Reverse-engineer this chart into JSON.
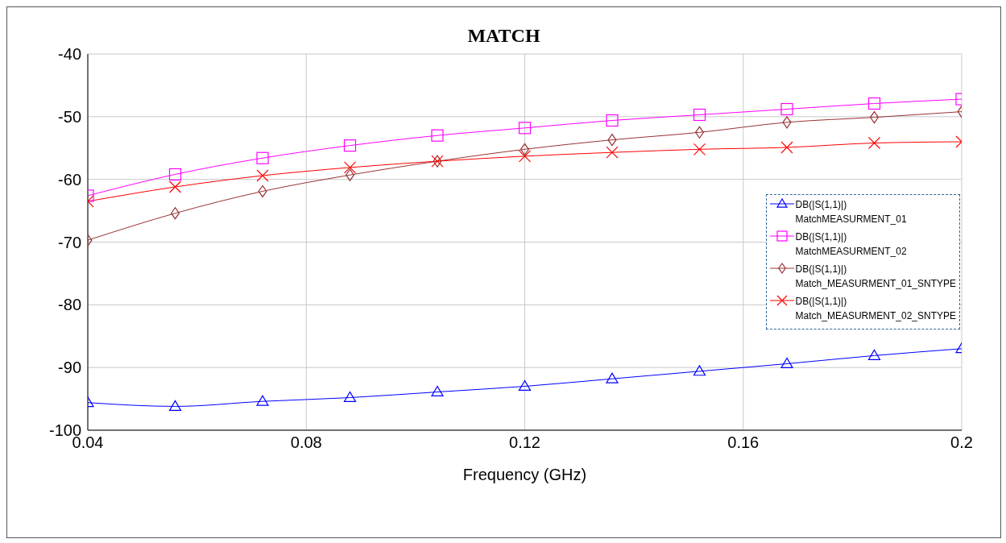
{
  "chart_data": {
    "type": "line",
    "title": "MATCH",
    "xlabel": "Frequency (GHz)",
    "x": [
      0.04,
      0.056,
      0.072,
      0.088,
      0.104,
      0.12,
      0.136,
      0.152,
      0.168,
      0.184,
      0.2
    ],
    "xlim": [
      0.04,
      0.2
    ],
    "xticks": [
      0.04,
      0.08,
      0.12,
      0.16,
      0.2
    ],
    "ylim": [
      -100,
      -40
    ],
    "yticks": [
      -100,
      -90,
      -80,
      -70,
      -60,
      -50,
      -40
    ],
    "grid": true,
    "legend": "right",
    "series": [
      {
        "name": "DB(|S(1,1)|)\nMatchMEASURMENT_01",
        "color": "#0000ff",
        "marker": "triangle",
        "values": [
          -95.6,
          -96.2,
          -95.4,
          -94.8,
          -93.9,
          -93.0,
          -91.8,
          -90.6,
          -89.4,
          -88.1,
          -87.0
        ]
      },
      {
        "name": "DB(|S(1,1)|)\nMatchMEASURMENT_02",
        "color": "#ff00ff",
        "marker": "square",
        "values": [
          -62.6,
          -59.2,
          -56.6,
          -54.6,
          -53.0,
          -51.8,
          -50.6,
          -49.7,
          -48.8,
          -47.9,
          -47.2
        ]
      },
      {
        "name": "DB(|S(1,1)|)\nMatch_MEASURMENT_01_SNTYPE",
        "color": "#993333",
        "marker": "diamond",
        "values": [
          -69.7,
          -65.4,
          -61.9,
          -59.3,
          -57.1,
          -55.2,
          -53.7,
          -52.5,
          -50.9,
          -50.1,
          -49.2
        ]
      },
      {
        "name": "DB(|S(1,1)|)\nMatch_MEASURMENT_02_SNTYPE",
        "color": "#ff0000",
        "marker": "cross",
        "values": [
          -63.5,
          -61.2,
          -59.4,
          -58.1,
          -57.1,
          -56.3,
          -55.7,
          -55.2,
          -54.9,
          -54.2,
          -54.0
        ]
      }
    ]
  }
}
